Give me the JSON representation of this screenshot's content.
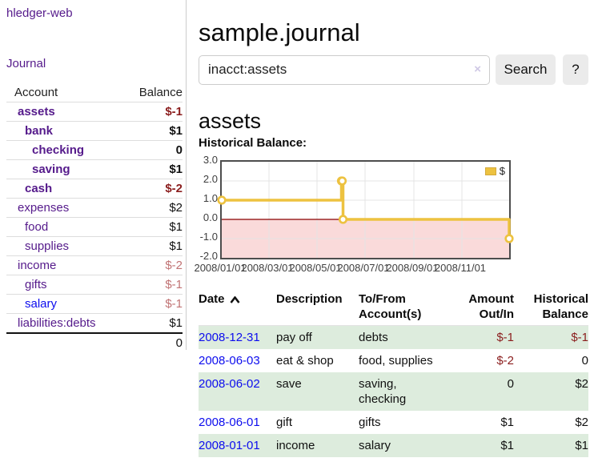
{
  "brand": "hledger-web",
  "nav": {
    "journal": "Journal"
  },
  "sidebar": {
    "col_account": "Account",
    "col_balance": "Balance",
    "accounts": [
      {
        "name": "assets",
        "balance": "$-1",
        "indent": 0,
        "bold": true,
        "neg": "strong"
      },
      {
        "name": "bank",
        "balance": "$1",
        "indent": 1,
        "bold": true,
        "neg": "none"
      },
      {
        "name": "checking",
        "balance": "0",
        "indent": 2,
        "bold": true,
        "neg": "none"
      },
      {
        "name": "saving",
        "balance": "$1",
        "indent": 2,
        "bold": true,
        "neg": "none"
      },
      {
        "name": "cash",
        "balance": "$-2",
        "indent": 1,
        "bold": true,
        "neg": "strong"
      },
      {
        "name": "expenses",
        "balance": "$2",
        "indent": 0,
        "bold": false,
        "neg": "none"
      },
      {
        "name": "food",
        "balance": "$1",
        "indent": 1,
        "bold": false,
        "neg": "none"
      },
      {
        "name": "supplies",
        "balance": "$1",
        "indent": 1,
        "bold": false,
        "neg": "none"
      },
      {
        "name": "income",
        "balance": "$-2",
        "indent": 0,
        "bold": false,
        "neg": "dim"
      },
      {
        "name": "gifts",
        "balance": "$-1",
        "indent": 1,
        "bold": false,
        "neg": "dim"
      },
      {
        "name": "salary",
        "balance": "$-1",
        "indent": 1,
        "bold": false,
        "neg": "dim",
        "link": "blue"
      },
      {
        "name": "liabilities:debts",
        "balance": "$1",
        "indent": 0,
        "bold": false,
        "neg": "none"
      }
    ],
    "total": "0"
  },
  "main": {
    "title": "sample.journal",
    "search": {
      "value": "inacct:assets",
      "clear": "×",
      "submit": "Search",
      "help": "?"
    },
    "heading": "assets",
    "chart_title": "Historical Balance:"
  },
  "chart_data": {
    "type": "line",
    "title": "Historical Balance",
    "steps": true,
    "x_range": [
      "2008-01-01",
      "2008-12-31"
    ],
    "ylim": [
      -2.0,
      3.0
    ],
    "yticks": [
      "3.0",
      "2.0",
      "1.0",
      "0.0",
      "-1.0",
      "-2.0"
    ],
    "xticks": [
      "2008/01/01",
      "2008/03/01",
      "2008/05/01",
      "2008/07/01",
      "2008/09/01",
      "2008/11/01"
    ],
    "legend": "$",
    "series": [
      {
        "name": "$",
        "color": "#edc240",
        "points": [
          {
            "date": "2008-01-01",
            "value": 1
          },
          {
            "date": "2008-06-01",
            "value": 2
          },
          {
            "date": "2008-06-02",
            "value": 2
          },
          {
            "date": "2008-06-03",
            "value": 0
          },
          {
            "date": "2008-12-31",
            "value": -1
          }
        ]
      }
    ],
    "negative_region_color": "#fadada",
    "zero_line_color": "#8b0000",
    "grid_color": "#e4e4e4",
    "legend_position": "top-right"
  },
  "register": {
    "headers": {
      "date": "Date",
      "description": "Description",
      "tofrom": "To/From Account(s)",
      "amount": "Amount Out/In",
      "balance": "Historical Balance"
    },
    "rows": [
      {
        "date": "2008-12-31",
        "description": "pay off",
        "accounts": "debts",
        "amount": "$-1",
        "amount_negative": true,
        "balance": "$-1",
        "balance_negative": true,
        "shaded": true
      },
      {
        "date": "2008-06-03",
        "description": "eat & shop",
        "accounts": "food, supplies",
        "amount": "$-2",
        "amount_negative": true,
        "balance": "0",
        "balance_negative": false,
        "shaded": false
      },
      {
        "date": "2008-06-02",
        "description": "save",
        "accounts": "saving, checking",
        "amount": "0",
        "amount_negative": false,
        "balance": "$2",
        "balance_negative": false,
        "shaded": true
      },
      {
        "date": "2008-06-01",
        "description": "gift",
        "accounts": "gifts",
        "amount": "$1",
        "amount_negative": false,
        "balance": "$2",
        "balance_negative": false,
        "shaded": false
      },
      {
        "date": "2008-01-01",
        "description": "income",
        "accounts": "salary",
        "amount": "$1",
        "amount_negative": false,
        "balance": "$1",
        "balance_negative": false,
        "shaded": true
      }
    ]
  }
}
